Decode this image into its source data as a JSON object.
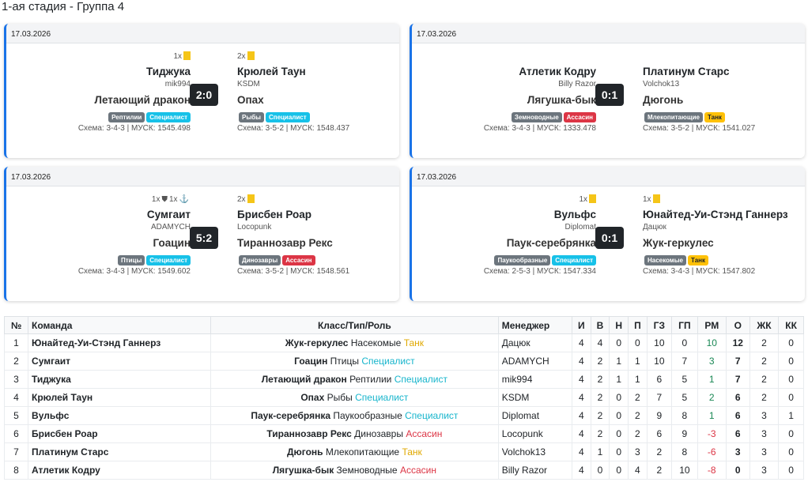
{
  "title": "1-ая стадия - Группа 4",
  "matches": [
    {
      "date": "17.03.2026",
      "score": "2:0",
      "home": {
        "cards": "1x",
        "icons": [],
        "team": "Тиджука",
        "manager": "mik994",
        "monster": "Летающий дракон",
        "type": "Рептилии",
        "role": "Специалист",
        "scheme": "Схема: 3-4-3 | МУСК: 1545.498"
      },
      "away": {
        "cards": "2x",
        "icons": [],
        "team": "Крюлей Таун",
        "manager": "KSDM",
        "monster": "Опах",
        "type": "Рыбы",
        "role": "Специалист",
        "scheme": "Схема: 3-5-2 | МУСК: 1548.437"
      }
    },
    {
      "date": "17.03.2026",
      "score": "0:1",
      "home": {
        "cards": "",
        "icons": [],
        "team": "Атлетик Кодру",
        "manager": "Billy Razor",
        "monster": "Лягушка-бык",
        "type": "Земноводные",
        "role": "Ассасин",
        "scheme": "Схема: 3-4-3 | МУСК: 1333.478"
      },
      "away": {
        "cards": "",
        "icons": [],
        "team": "Платинум Старс",
        "manager": "Volchok13",
        "monster": "Дюгонь",
        "type": "Млекопитающие",
        "role": "Танк",
        "scheme": "Схема: 3-5-2 | МУСК: 1541.027"
      }
    },
    {
      "date": "17.03.2026",
      "score": "5:2",
      "home": {
        "cards": "1x",
        "icons": [
          "1x"
        ],
        "team": "Сумгаит",
        "manager": "ADAMYCH",
        "monster": "Гоацин",
        "type": "Птицы",
        "role": "Специалист",
        "scheme": "Схема: 3-4-3 | МУСК: 1549.602"
      },
      "away": {
        "cards": "2x",
        "icons": [],
        "team": "Брисбен Роар",
        "manager": "Locopunk",
        "monster": "Тираннозавр Рекс",
        "type": "Динозавры",
        "role": "Ассасин",
        "scheme": "Схема: 3-5-2 | МУСК: 1548.561"
      }
    },
    {
      "date": "17.03.2026",
      "score": "0:1",
      "home": {
        "cards": "1x",
        "icons": [],
        "team": "Вульфс",
        "manager": "Diplomat",
        "monster": "Паук-серебрянка",
        "type": "Паукообразные",
        "role": "Специалист",
        "scheme": "Схема: 2-5-3 | МУСК: 1547.334"
      },
      "away": {
        "cards": "1x",
        "icons": [],
        "team": "Юнайтед-Уи-Стэнд Ганнерз",
        "manager": "Дацюк",
        "monster": "Жук-геркулес",
        "type": "Насекомые",
        "role": "Танк",
        "scheme": "Схема: 3-4-3 | МУСК: 1547.802"
      }
    }
  ],
  "table": {
    "headers": [
      "№",
      "Команда",
      "Класс/Тип/Роль",
      "Менеджер",
      "И",
      "В",
      "Н",
      "П",
      "ГЗ",
      "ГП",
      "РМ",
      "О",
      "ЖК",
      "КК"
    ],
    "rows": [
      [
        "1",
        "Юнайтед-Уи-Стэнд Ганнерз",
        "Жук-геркулес",
        "Насекомые",
        "Танк",
        "Дацюк",
        "4",
        "4",
        "0",
        "0",
        "10",
        "0",
        "10",
        "12",
        "2",
        "0"
      ],
      [
        "2",
        "Сумгаит",
        "Гоацин",
        "Птицы",
        "Специалист",
        "ADAMYCH",
        "4",
        "2",
        "1",
        "1",
        "10",
        "7",
        "3",
        "7",
        "2",
        "0"
      ],
      [
        "3",
        "Тиджука",
        "Летающий дракон",
        "Рептилии",
        "Специалист",
        "mik994",
        "4",
        "2",
        "1",
        "1",
        "6",
        "5",
        "1",
        "7",
        "2",
        "0"
      ],
      [
        "4",
        "Крюлей Таун",
        "Опах",
        "Рыбы",
        "Специалист",
        "KSDM",
        "4",
        "2",
        "0",
        "2",
        "7",
        "5",
        "2",
        "6",
        "2",
        "0"
      ],
      [
        "5",
        "Вульфс",
        "Паук-серебрянка",
        "Паукообразные",
        "Специалист",
        "Diplomat",
        "4",
        "2",
        "0",
        "2",
        "9",
        "8",
        "1",
        "6",
        "3",
        "1"
      ],
      [
        "6",
        "Брисбен Роар",
        "Тираннозавр Рекс",
        "Динозавры",
        "Ассасин",
        "Locopunk",
        "4",
        "2",
        "0",
        "2",
        "6",
        "9",
        "-3",
        "6",
        "3",
        "0"
      ],
      [
        "7",
        "Платинум Старс",
        "Дюгонь",
        "Млекопитающие",
        "Танк",
        "Volchok13",
        "4",
        "1",
        "0",
        "3",
        "2",
        "8",
        "-6",
        "3",
        "3",
        "0"
      ],
      [
        "8",
        "Атлетик Кодру",
        "Лягушка-бык",
        "Земноводные",
        "Ассасин",
        "Billy Razor",
        "4",
        "0",
        "0",
        "4",
        "2",
        "10",
        "-8",
        "0",
        "3",
        "0"
      ]
    ]
  }
}
